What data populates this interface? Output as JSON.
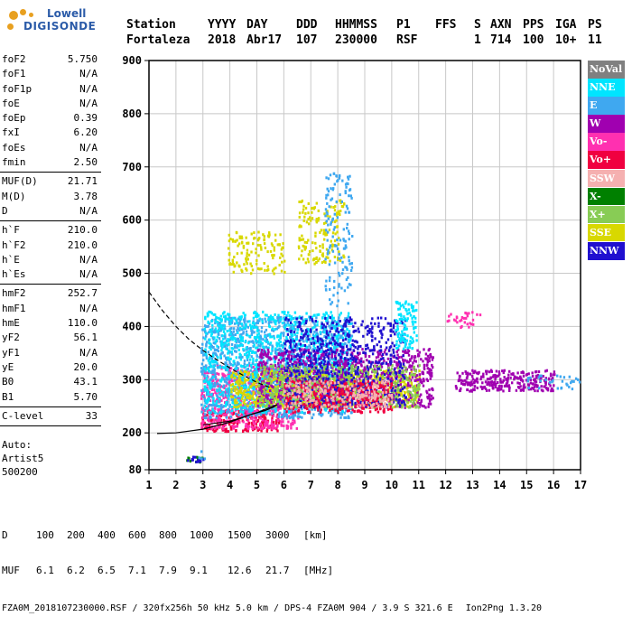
{
  "logo": {
    "line1": "Lowell",
    "line2": "DIGISONDE"
  },
  "header": {
    "labels": [
      "Station",
      "YYYY",
      "DAY",
      "DDD",
      "HHMMSS",
      "P1",
      "FFS",
      "S",
      "AXN",
      "PPS",
      "IGA",
      "PS"
    ],
    "values": [
      "Fortaleza",
      "2018",
      "Abr17",
      "107",
      "230000",
      "RSF",
      "",
      "1",
      "714",
      "100",
      "10+",
      "11"
    ]
  },
  "params": [
    {
      "group": 1,
      "name": "foF2",
      "value": "5.750"
    },
    {
      "group": 1,
      "name": "foF1",
      "value": "N/A"
    },
    {
      "group": 1,
      "name": "foF1p",
      "value": "N/A"
    },
    {
      "group": 1,
      "name": "foE",
      "value": "N/A"
    },
    {
      "group": 1,
      "name": "foEp",
      "value": "0.39"
    },
    {
      "group": 1,
      "name": "fxI",
      "value": "6.20"
    },
    {
      "group": 1,
      "name": "foEs",
      "value": "N/A"
    },
    {
      "group": 1,
      "name": "fmin",
      "value": "2.50"
    },
    {
      "group": 2,
      "name": "MUF(D)",
      "value": "21.71"
    },
    {
      "group": 2,
      "name": "M(D)",
      "value": "3.78"
    },
    {
      "group": 2,
      "name": "D",
      "value": "N/A"
    },
    {
      "group": 3,
      "name": "h`F",
      "value": "210.0"
    },
    {
      "group": 3,
      "name": "h`F2",
      "value": "210.0"
    },
    {
      "group": 3,
      "name": "h`E",
      "value": "N/A"
    },
    {
      "group": 3,
      "name": "h`Es",
      "value": "N/A"
    },
    {
      "group": 4,
      "name": "hmF2",
      "value": "252.7"
    },
    {
      "group": 4,
      "name": "hmF1",
      "value": "N/A"
    },
    {
      "group": 4,
      "name": "hmE",
      "value": "110.0"
    },
    {
      "group": 4,
      "name": "yF2",
      "value": "56.1"
    },
    {
      "group": 4,
      "name": "yF1",
      "value": "N/A"
    },
    {
      "group": 4,
      "name": "yE",
      "value": "20.0"
    },
    {
      "group": 4,
      "name": "B0",
      "value": "43.1"
    },
    {
      "group": 4,
      "name": "B1",
      "value": "5.70"
    },
    {
      "group": 5,
      "name": "C-level",
      "value": "33"
    }
  ],
  "auto": {
    "line1": "Auto:",
    "line2": "Artist5",
    "line3": "500200"
  },
  "legend": [
    {
      "label": "NoVal",
      "color": "#808080"
    },
    {
      "label": "NNE",
      "color": "#00e5ff"
    },
    {
      "label": "E",
      "color": "#3fa8f0"
    },
    {
      "label": "W",
      "color": "#a000b0"
    },
    {
      "label": "Vo-",
      "color": "#ff30b0"
    },
    {
      "label": "Vo+",
      "color": "#f00040"
    },
    {
      "label": "SSW",
      "color": "#f5b0b0"
    },
    {
      "label": "X-",
      "color": "#008000"
    },
    {
      "label": "X+",
      "color": "#88cc55"
    },
    {
      "label": "SSE",
      "color": "#d8d800"
    },
    {
      "label": "NNW",
      "color": "#2010d0"
    }
  ],
  "footer": {
    "d_label": "D",
    "d_values": [
      "100",
      "200",
      "400",
      "600",
      "800",
      "1000",
      "1500",
      "3000",
      "[km]"
    ],
    "muf_label": "MUF",
    "muf_values": [
      "6.1",
      "6.2",
      "6.5",
      "7.1",
      "7.9",
      "9.1",
      "12.6",
      "21.7",
      "[MHz]"
    ],
    "info": "FZA0M_2018107230000.RSF / 320fx256h 50 kHz 5.0 km / DPS-4 FZA0M 904 / 3.9 S 321.6 E",
    "version": "Ion2Png 1.3.20"
  },
  "chart_data": {
    "type": "scatter",
    "xlim": [
      1,
      17
    ],
    "ylim": [
      80,
      900
    ],
    "xticks": [
      "1",
      "2",
      "3",
      "4",
      "5",
      "6",
      "7",
      "8",
      "9",
      "10",
      "11",
      "12",
      "13",
      "14",
      "15",
      "16",
      "17"
    ],
    "yticks": [
      "80",
      "200",
      "300",
      "400",
      "500",
      "600",
      "700",
      "800",
      "900"
    ],
    "grid": true,
    "legend_position": "right",
    "echo_regions": [
      {
        "series": "X-",
        "x": [
          2.3,
          3.0
        ],
        "y": [
          105,
          125
        ],
        "density": 0.8
      },
      {
        "series": "NNW",
        "x": [
          2.3,
          3.0
        ],
        "y": [
          108,
          128
        ],
        "density": 0.8
      },
      {
        "series": "E",
        "x": [
          2.7,
          3.2
        ],
        "y": [
          120,
          145
        ],
        "density": 0.3
      },
      {
        "series": "Vo+",
        "x": [
          2.9,
          5.8
        ],
        "y": [
          205,
          245
        ],
        "density": 0.9
      },
      {
        "series": "Vo-",
        "x": [
          2.9,
          6.5
        ],
        "y": [
          210,
          330
        ],
        "density": 0.7
      },
      {
        "series": "E",
        "x": [
          2.9,
          8.5
        ],
        "y": [
          230,
          420
        ],
        "density": 0.6
      },
      {
        "series": "NNE",
        "x": [
          3.0,
          8.5
        ],
        "y": [
          240,
          430
        ],
        "density": 0.4
      },
      {
        "series": "SSE",
        "x": [
          4.0,
          11.0
        ],
        "y": [
          250,
          320
        ],
        "density": 0.7
      },
      {
        "series": "W",
        "x": [
          5.0,
          11.5
        ],
        "y": [
          250,
          360
        ],
        "density": 0.6
      },
      {
        "series": "X+",
        "x": [
          5.0,
          11.0
        ],
        "y": [
          250,
          330
        ],
        "density": 0.5
      },
      {
        "series": "NNW",
        "x": [
          6.0,
          10.5
        ],
        "y": [
          250,
          420
        ],
        "density": 0.4
      },
      {
        "series": "Vo+",
        "x": [
          6.0,
          10.0
        ],
        "y": [
          240,
          300
        ],
        "density": 0.6
      },
      {
        "series": "SSW",
        "x": [
          6.0,
          10.0
        ],
        "y": [
          250,
          300
        ],
        "density": 0.5
      },
      {
        "series": "SSE",
        "x": [
          3.9,
          6.0
        ],
        "y": [
          500,
          580
        ],
        "density": 0.35
      },
      {
        "series": "SSE",
        "x": [
          6.5,
          8.2
        ],
        "y": [
          520,
          640
        ],
        "density": 0.35
      },
      {
        "series": "E",
        "x": [
          7.5,
          8.5
        ],
        "y": [
          440,
          690
        ],
        "density": 0.25
      },
      {
        "series": "NNE",
        "x": [
          10.1,
          10.9
        ],
        "y": [
          360,
          450
        ],
        "density": 0.7
      },
      {
        "series": "Vo-",
        "x": [
          12.0,
          13.3
        ],
        "y": [
          400,
          430
        ],
        "density": 0.35
      },
      {
        "series": "W",
        "x": [
          12.3,
          16.0
        ],
        "y": [
          280,
          320
        ],
        "density": 0.85
      },
      {
        "series": "E",
        "x": [
          15.0,
          17.0
        ],
        "y": [
          285,
          310
        ],
        "density": 0.3
      }
    ],
    "profile_curve": {
      "x": [
        1.3,
        2.0,
        3.0,
        4.0,
        4.8,
        5.3,
        5.6,
        5.75
      ],
      "y": [
        198,
        200,
        207,
        220,
        235,
        242,
        248,
        253
      ]
    },
    "profile_curve_upper": {
      "x": [
        3.0,
        4.0,
        5.0,
        5.5,
        5.75
      ],
      "y": [
        215,
        222,
        238,
        248,
        253
      ]
    },
    "dashed_curve": {
      "x": [
        1.0,
        1.5,
        2.0,
        2.5,
        3.0,
        3.5,
        4.0,
        4.5,
        5.0,
        5.5
      ],
      "y": [
        465,
        430,
        400,
        375,
        355,
        338,
        322,
        308,
        295,
        285
      ]
    }
  }
}
